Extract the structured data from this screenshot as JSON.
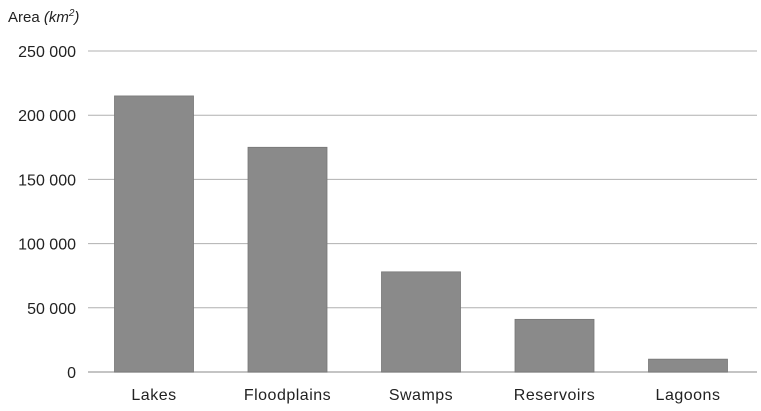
{
  "chart_data": {
    "type": "bar",
    "title": "",
    "ylabel_prefix": "Area",
    "ylabel_unit_base": "(km",
    "ylabel_unit_sup": "2",
    "ylabel_unit_close": ")",
    "xlabel": "",
    "categories": [
      "Lakes",
      "Floodplains",
      "Swamps",
      "Reservoirs",
      "Lagoons"
    ],
    "values": [
      215000,
      175000,
      78000,
      41000,
      10000
    ],
    "ylim": [
      0,
      250000
    ],
    "yticks": [
      0,
      50000,
      100000,
      150000,
      200000,
      250000
    ],
    "ytick_labels": [
      "0",
      "50 000",
      "100 000",
      "150 000",
      "200 000",
      "250 000"
    ],
    "grid": true,
    "bar_color": "#8a8a8a",
    "grid_color": "#b0b0b0"
  }
}
